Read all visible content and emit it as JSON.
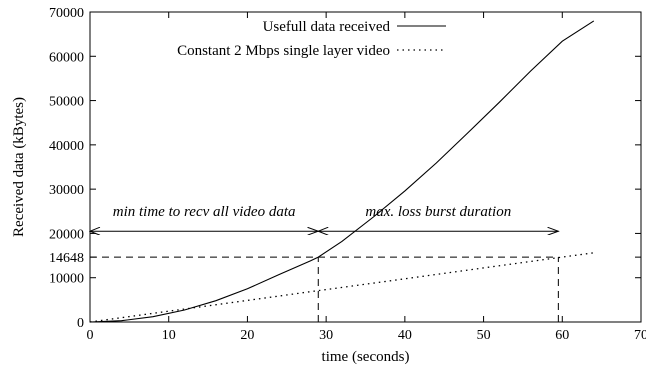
{
  "chart_data": {
    "type": "line",
    "title": "",
    "xlabel": "time (seconds)",
    "ylabel": "Received data (kBytes)",
    "xlim": [
      0,
      70
    ],
    "ylim": [
      0,
      70000
    ],
    "xticks": [
      0,
      10,
      20,
      30,
      40,
      50,
      60,
      70
    ],
    "xtick_labels": [
      "0",
      "10",
      "20",
      "30",
      "40",
      "50",
      "60",
      "70"
    ],
    "yticks": [
      0,
      10000,
      14648,
      20000,
      30000,
      40000,
      50000,
      60000,
      70000
    ],
    "ytick_labels": [
      "0",
      "10000",
      "14648",
      "20000",
      "30000",
      "40000",
      "50000",
      "60000",
      "70000"
    ],
    "grid": false,
    "legend_position": "top-center",
    "series": [
      {
        "name": "Usefull data received",
        "style": "solid",
        "color": "#000000",
        "x": [
          0,
          4,
          8,
          12,
          16,
          20,
          24,
          28,
          29,
          32,
          36,
          40,
          44,
          48,
          52,
          56,
          60,
          64
        ],
        "y": [
          0,
          300,
          1200,
          2700,
          4800,
          7500,
          10700,
          13800,
          14648,
          18200,
          23700,
          29600,
          35900,
          42700,
          49600,
          56700,
          63400,
          68000
        ]
      },
      {
        "name": "Constant 2 Mbps single layer video",
        "style": "dotted",
        "color": "#000000",
        "x": [
          0,
          10,
          20,
          29,
          30,
          40,
          50,
          60,
          64
        ],
        "y": [
          0,
          2441,
          4882,
          7080,
          7324,
          9765,
          12207,
          14648,
          15625
        ]
      }
    ],
    "reference_lines": [
      {
        "type": "horizontal-dashed",
        "y": 14648,
        "x_start": 0,
        "x_end": 59.5
      },
      {
        "type": "vertical-dashed",
        "x": 29,
        "y_start": 0,
        "y_end": 14648
      },
      {
        "type": "vertical-dashed",
        "x": 59.5,
        "y_start": 0,
        "y_end": 14648
      }
    ],
    "annotations": [
      {
        "text": "min time to recv all video data",
        "arrow": "double",
        "x_start": 0,
        "x_end": 29,
        "y": 20500
      },
      {
        "text": "max. loss burst duration",
        "arrow": "double",
        "x_start": 29,
        "x_end": 59.5,
        "y": 20500
      }
    ]
  }
}
